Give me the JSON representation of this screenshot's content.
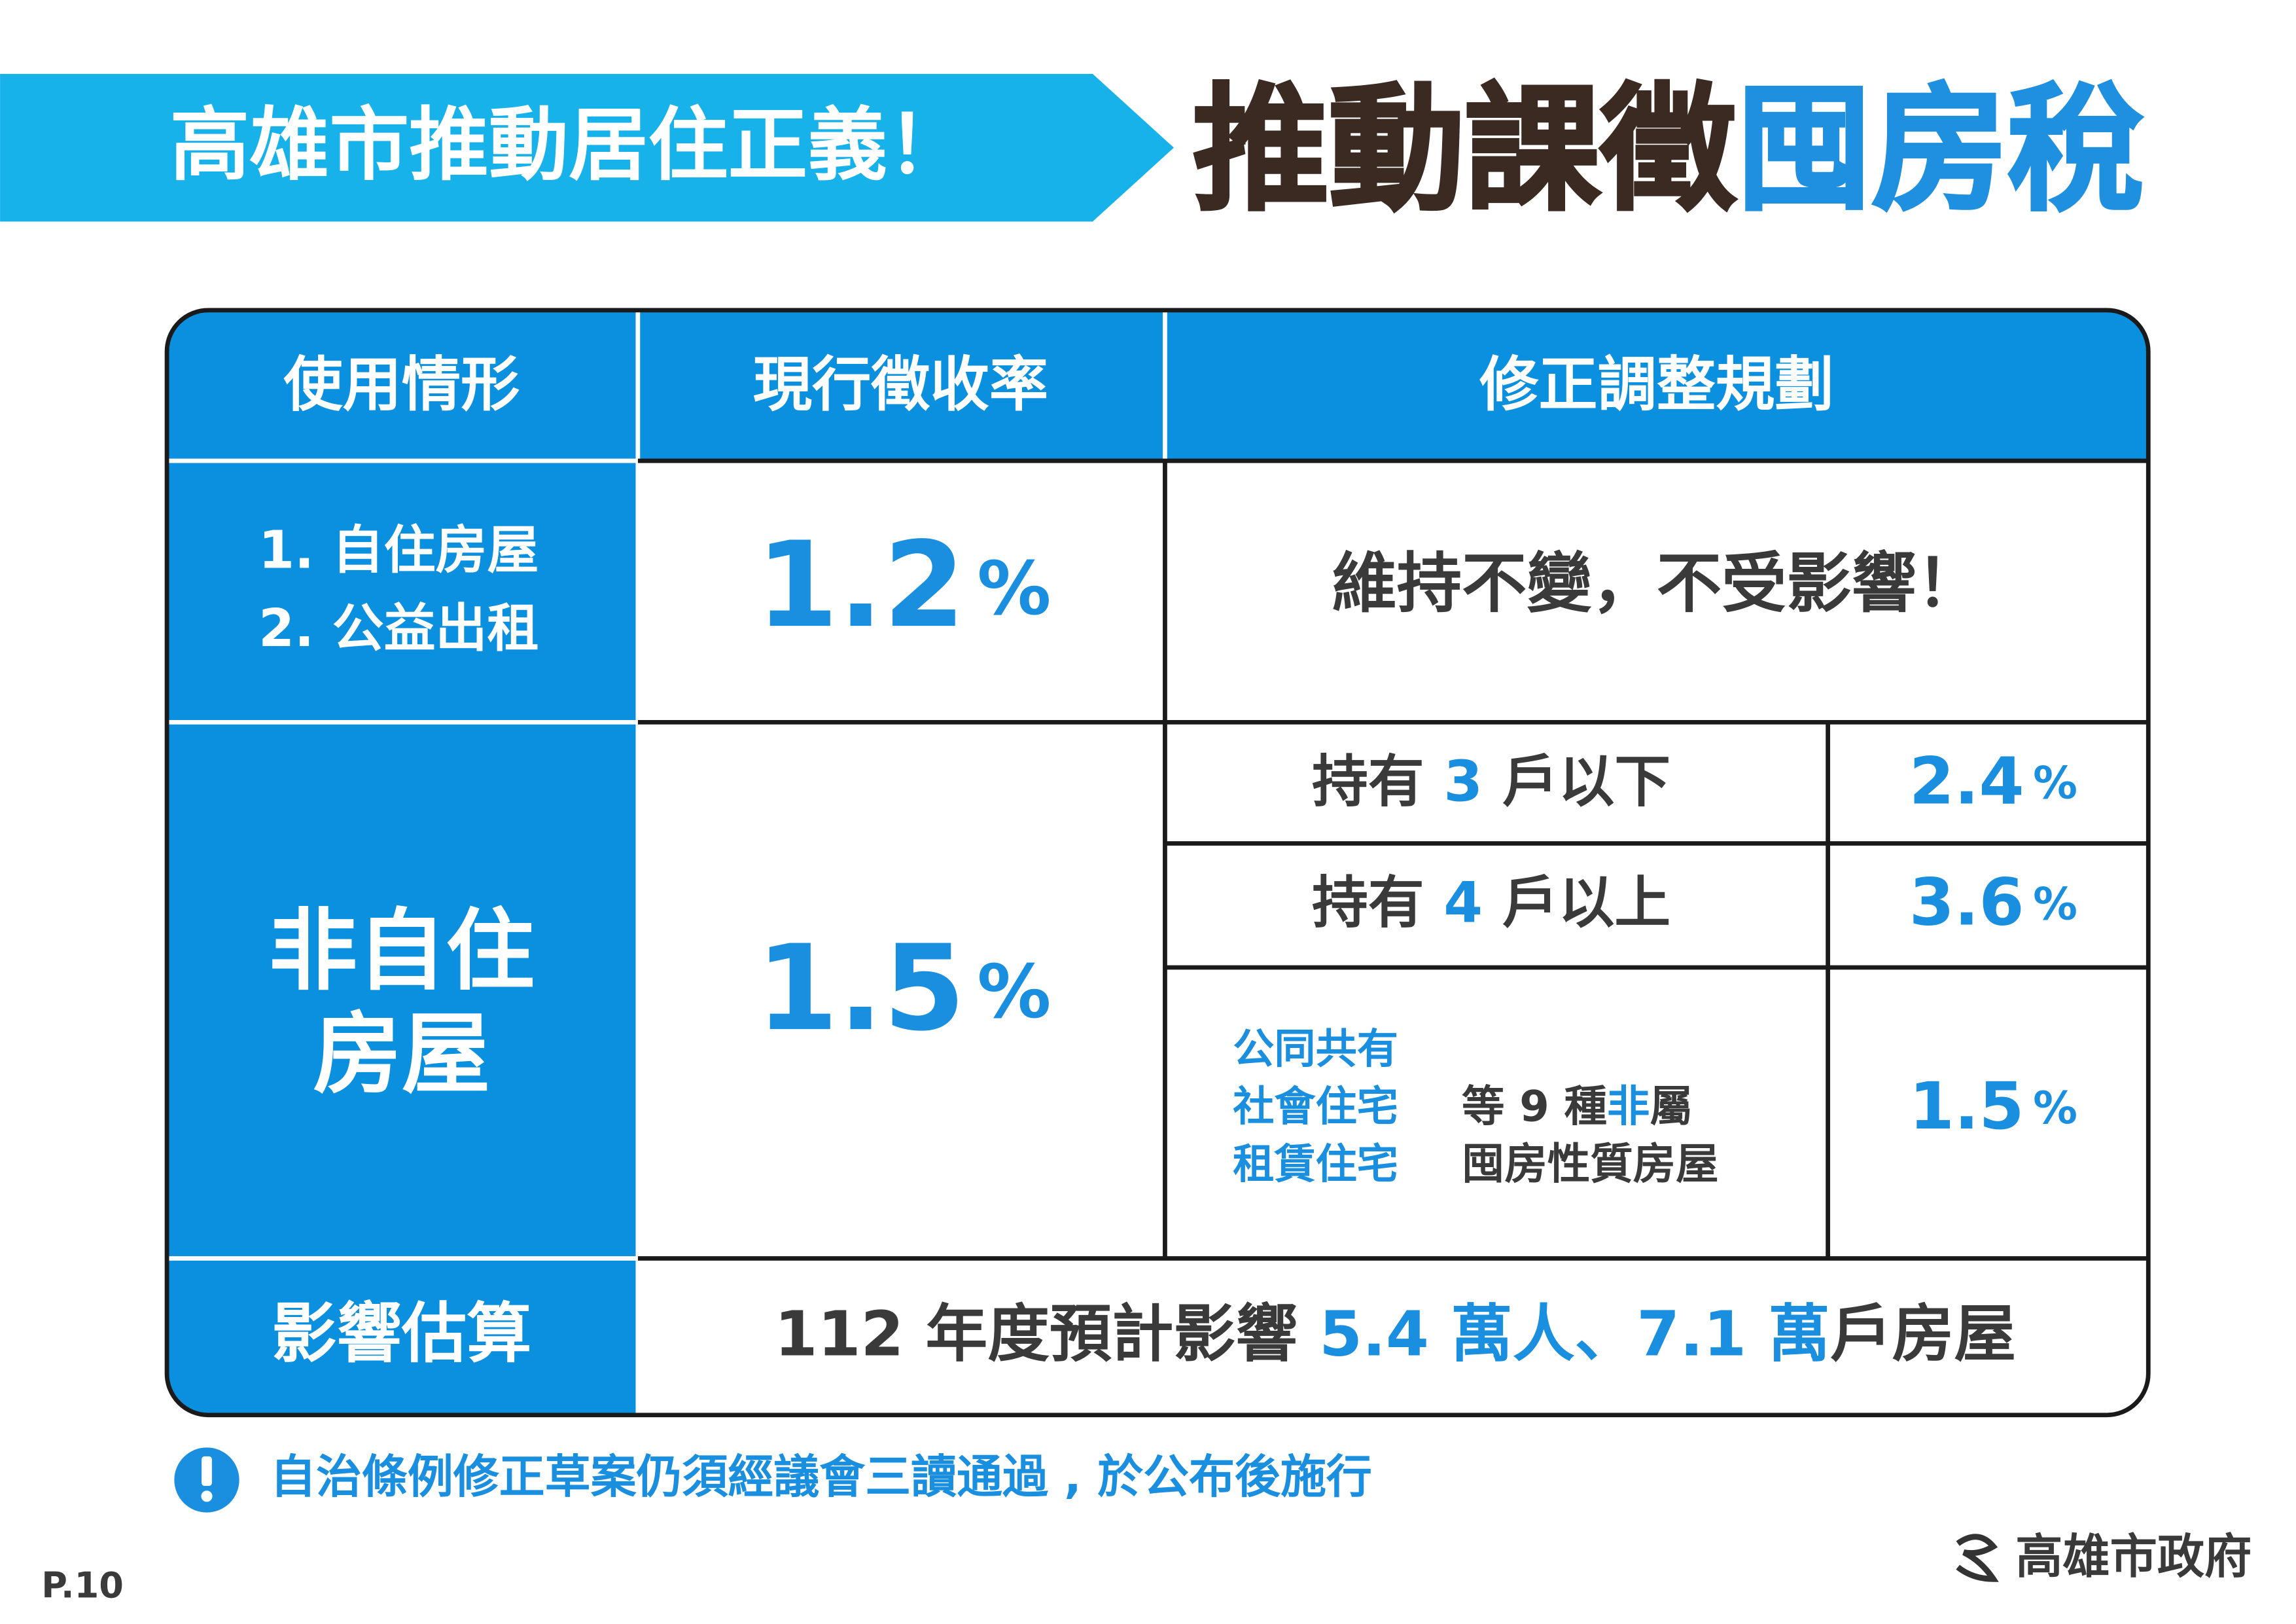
{
  "header": {
    "banner": "高雄市推動居住正義！",
    "title": [
      "推動課徵",
      "囤房稅"
    ]
  },
  "table": {
    "headers": [
      "使用情形",
      "現行徵收率",
      "修正調整規劃"
    ],
    "rows": [
      {
        "usage": [
          "1. 自住房屋",
          "2. 公益出租"
        ],
        "current": [
          "1.2",
          "%"
        ],
        "plan": "維持不變，不受影響！"
      },
      {
        "usage": [
          "非自住",
          "房屋"
        ],
        "current": [
          "1.5",
          "%"
        ],
        "plan": [
          {
            "label": [
              "持有 ",
              "3",
              " 戶以下"
            ],
            "rate": [
              "2.4",
              "%"
            ]
          },
          {
            "label": [
              "持有 ",
              "4",
              " 戶以上"
            ],
            "rate": [
              "3.6",
              "%"
            ]
          },
          {
            "kinds": [
              "公同共有",
              "社會住宅",
              "租賃住宅"
            ],
            "label": [
              "等 9 種",
              "非",
              "屬"
            ],
            "label2": "囤房性質房屋",
            "rate": [
              "1.5",
              "%"
            ]
          }
        ]
      },
      {
        "usage": [
          "影響估算"
        ],
        "impact": [
          "112 年度預計影響 ",
          "5.4 萬人、7.1 萬",
          "戶房屋"
        ]
      }
    ]
  },
  "note": "自治條例修正草案仍須經議會三讀通過 , 於公布後施行",
  "footer": {
    "page": "P.10",
    "org": "高雄市政府"
  }
}
